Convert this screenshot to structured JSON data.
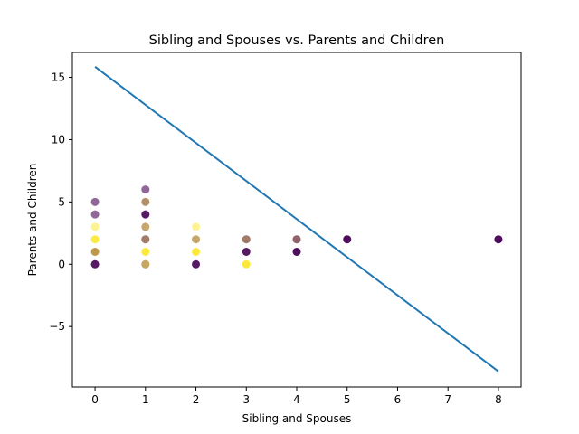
{
  "chart_data": {
    "type": "scatter",
    "title": "Sibling and Spouses vs. Parents and Children",
    "xlabel": "Sibling and Spouses",
    "ylabel": "Parents and Children",
    "xlim": [
      -0.45,
      8.45
    ],
    "ylim": [
      -9.85,
      17.0
    ],
    "xticks": [
      0,
      1,
      2,
      3,
      4,
      5,
      6,
      7,
      8
    ],
    "yticks": [
      -5,
      0,
      5,
      10,
      15
    ],
    "ytick_labels": [
      "−5",
      "0",
      "5",
      "10",
      "15"
    ],
    "grid": false,
    "legend": "none",
    "colors": {
      "purple": "#440154",
      "yellow": "#fde725",
      "line": "#1f77b4"
    },
    "series": [
      {
        "values": [
          {
            "x": 0,
            "y": 5,
            "color": "purple",
            "alpha": 0.6
          },
          {
            "x": 0,
            "y": 4,
            "color": "purple",
            "alpha": 0.6
          },
          {
            "x": 0,
            "y": 3,
            "color": "yellow",
            "alpha": 0.5
          },
          {
            "x": 0,
            "y": 2,
            "color": "yellow",
            "alpha": 0.85
          },
          {
            "x": 0,
            "y": 1,
            "color": "yellow",
            "alpha": 0.85
          },
          {
            "x": 0,
            "y": 1,
            "color": "purple",
            "alpha": 0.35
          },
          {
            "x": 0,
            "y": 0,
            "color": "purple",
            "alpha": 0.9
          },
          {
            "x": 1,
            "y": 6,
            "color": "purple",
            "alpha": 0.6
          },
          {
            "x": 1,
            "y": 5,
            "color": "yellow",
            "alpha": 0.6
          },
          {
            "x": 1,
            "y": 5,
            "color": "purple",
            "alpha": 0.4
          },
          {
            "x": 1,
            "y": 4,
            "color": "purple",
            "alpha": 0.9
          },
          {
            "x": 1,
            "y": 3,
            "color": "yellow",
            "alpha": 0.6
          },
          {
            "x": 1,
            "y": 3,
            "color": "purple",
            "alpha": 0.3
          },
          {
            "x": 1,
            "y": 2,
            "color": "purple",
            "alpha": 0.7
          },
          {
            "x": 1,
            "y": 2,
            "color": "yellow",
            "alpha": 0.3
          },
          {
            "x": 1,
            "y": 1,
            "color": "yellow",
            "alpha": 0.9
          },
          {
            "x": 1,
            "y": 0,
            "color": "purple",
            "alpha": 0.6
          },
          {
            "x": 1,
            "y": 0,
            "color": "yellow",
            "alpha": 0.5
          },
          {
            "x": 2,
            "y": 3,
            "color": "yellow",
            "alpha": 0.5
          },
          {
            "x": 2,
            "y": 2,
            "color": "yellow",
            "alpha": 0.6
          },
          {
            "x": 2,
            "y": 2,
            "color": "purple",
            "alpha": 0.3
          },
          {
            "x": 2,
            "y": 1,
            "color": "yellow",
            "alpha": 0.9
          },
          {
            "x": 2,
            "y": 0,
            "color": "purple",
            "alpha": 0.9
          },
          {
            "x": 3,
            "y": 2,
            "color": "purple",
            "alpha": 0.7
          },
          {
            "x": 3,
            "y": 2,
            "color": "yellow",
            "alpha": 0.3
          },
          {
            "x": 3,
            "y": 1,
            "color": "purple",
            "alpha": 0.9
          },
          {
            "x": 3,
            "y": 0,
            "color": "yellow",
            "alpha": 0.9
          },
          {
            "x": 4,
            "y": 2,
            "color": "purple",
            "alpha": 0.75
          },
          {
            "x": 4,
            "y": 2,
            "color": "yellow",
            "alpha": 0.2
          },
          {
            "x": 4,
            "y": 1,
            "color": "purple",
            "alpha": 0.95
          },
          {
            "x": 5,
            "y": 2,
            "color": "purple",
            "alpha": 0.95
          },
          {
            "x": 8,
            "y": 2,
            "color": "purple",
            "alpha": 0.95
          }
        ]
      }
    ],
    "regression_line": {
      "x": [
        0,
        8
      ],
      "y": [
        15.85,
        -8.6
      ]
    }
  }
}
